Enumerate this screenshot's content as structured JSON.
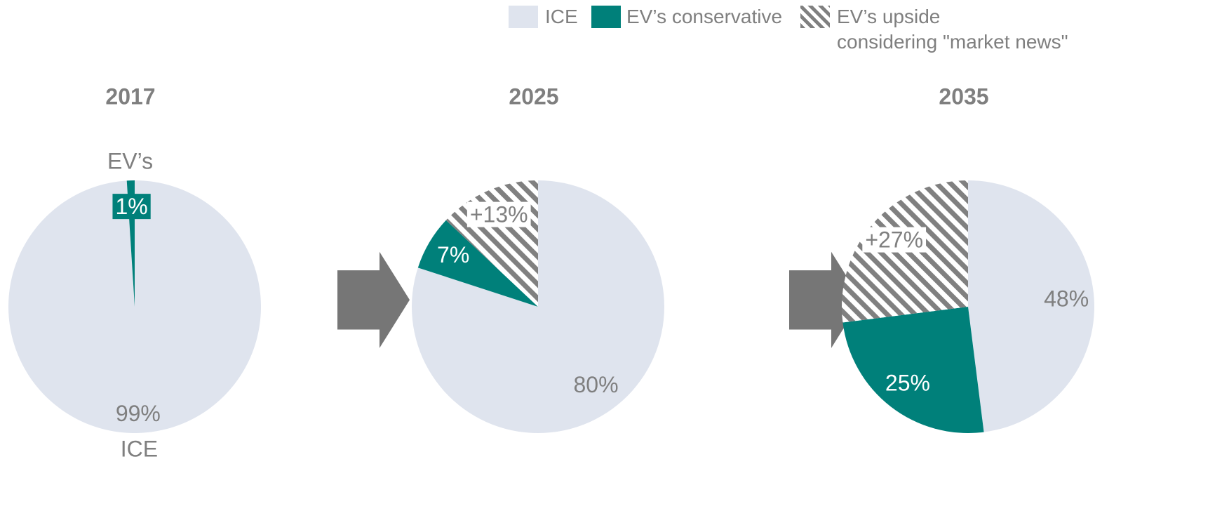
{
  "legend": [
    {
      "name": "ICE",
      "color": "#dfe4ee",
      "hatch": false
    },
    {
      "name": "EV’s conservative",
      "color": "#00807a",
      "hatch": false
    },
    {
      "name": "EV’s upside\nconsidering \"market news\"",
      "color": "#808080",
      "hatch": true
    }
  ],
  "chart_data": [
    {
      "type": "pie",
      "title": "2017",
      "categories": [
        "ICE",
        "EV’s"
      ],
      "values": [
        99,
        1
      ],
      "value_labels": [
        "99%",
        "1%"
      ],
      "colors": [
        "#dfe4ee",
        "#00807a"
      ],
      "hatch": [
        false,
        false
      ]
    },
    {
      "type": "pie",
      "title": "2025",
      "values": [
        80,
        7,
        13
      ],
      "value_labels": [
        "80%",
        "7%",
        "+13%"
      ],
      "colors": [
        "#dfe4ee",
        "#00807a",
        "#808080"
      ],
      "hatch": [
        false,
        false,
        true
      ]
    },
    {
      "type": "pie",
      "title": "2035",
      "values": [
        48,
        25,
        27
      ],
      "value_labels": [
        "48%",
        "25%",
        "+27%"
      ],
      "colors": [
        "#dfe4ee",
        "#00807a",
        "#808080"
      ],
      "hatch": [
        false,
        false,
        true
      ]
    }
  ]
}
